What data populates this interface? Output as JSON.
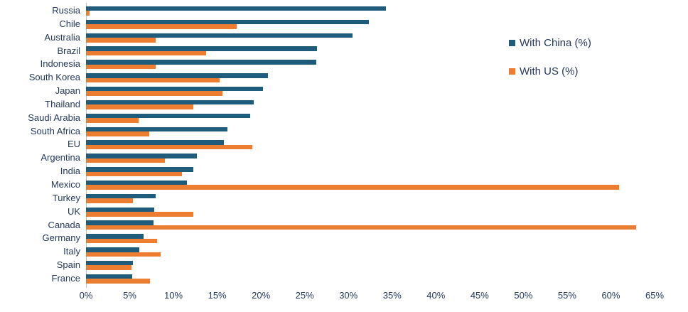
{
  "chart_data": {
    "type": "bar",
    "orientation": "horizontal",
    "title": "",
    "categories": [
      "Russia",
      "Chile",
      "Australia",
      "Brazil",
      "Indonesia",
      "South Korea",
      "Japan",
      "Thailand",
      "Saudi Arabia",
      "South Africa",
      "EU",
      "Argentina",
      "India",
      "Mexico",
      "Turkey",
      "UK",
      "Canada",
      "Germany",
      "Italy",
      "Spain",
      "France"
    ],
    "series": [
      {
        "name": "With China (%)",
        "color": "#1F5C7B",
        "values": [
          34.3,
          32.3,
          30.5,
          26.4,
          26.3,
          20.8,
          20.2,
          19.2,
          18.8,
          16.2,
          15.8,
          12.7,
          12.3,
          11.5,
          8.0,
          7.8,
          7.7,
          6.6,
          6.1,
          5.4,
          5.3
        ]
      },
      {
        "name": "With US (%)",
        "color": "#ED7D31",
        "values": [
          0.4,
          17.2,
          8.0,
          13.7,
          8.0,
          15.3,
          15.6,
          12.3,
          6.0,
          7.2,
          19.0,
          9.0,
          11.0,
          60.9,
          5.4,
          12.3,
          62.9,
          8.1,
          8.5,
          5.2,
          7.3
        ]
      }
    ],
    "x_axis": {
      "min": 0,
      "max": 65,
      "tick_step": 5,
      "tick_labels": [
        "0%",
        "5%",
        "10%",
        "15%",
        "20%",
        "25%",
        "30%",
        "35%",
        "40%",
        "45%",
        "50%",
        "55%",
        "60%",
        "65%"
      ]
    },
    "legend_position": "right-top",
    "grid": false
  },
  "colors": {
    "text": "#24395B",
    "axis_line": "#BFBFBF",
    "background": "#FFFFFF"
  }
}
